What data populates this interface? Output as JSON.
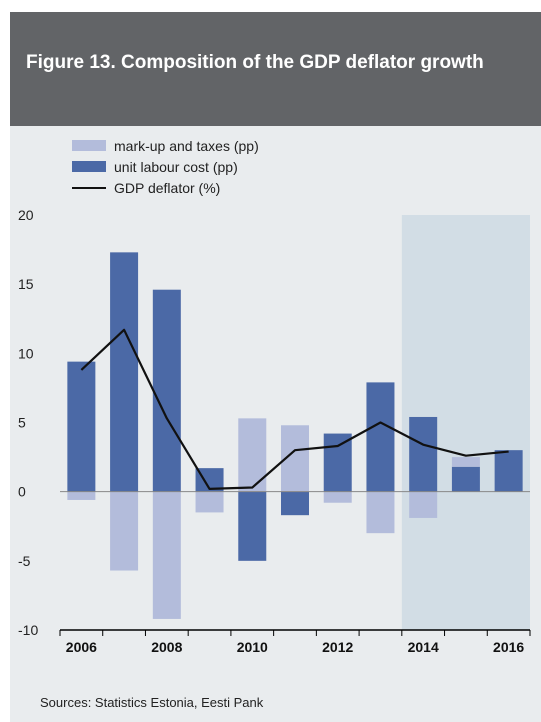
{
  "title": "Figure 13. Composition of the GDP deflator growth",
  "source": "Sources: Statistics Estonia, Eesti Pank",
  "colors": {
    "header_bg": "#626467",
    "panel_bg": "#e9ecee",
    "markup": "#b3bcdb",
    "labour": "#4b69a6",
    "deflator": "#111111",
    "forecast_shade": "#d2dde5"
  },
  "legend": [
    {
      "label": "mark-up and taxes (pp)",
      "type": "bar",
      "color": "#b3bcdb"
    },
    {
      "label": "unit labour cost (pp)",
      "type": "bar",
      "color": "#4b69a6"
    },
    {
      "label": "GDP deflator (%)",
      "type": "line",
      "color": "#111111"
    }
  ],
  "chart_data": {
    "type": "bar",
    "categories": [
      "2006",
      "2007",
      "2008",
      "2009",
      "2010",
      "2011",
      "2012",
      "2013",
      "2014",
      "2015",
      "2016"
    ],
    "x_tick_labels": [
      "2006",
      "2008",
      "2010",
      "2012",
      "2014",
      "2016"
    ],
    "y_ticks": [
      "20",
      "15",
      "10",
      "5",
      "0",
      "-5",
      "-10"
    ],
    "ylim": [
      -10,
      20
    ],
    "shaded_region": [
      "2014",
      "2016"
    ],
    "series": [
      {
        "name": "mark-up and taxes (pp)",
        "type": "bar",
        "values": [
          -0.6,
          -5.7,
          -9.2,
          -1.5,
          5.3,
          4.8,
          -0.8,
          -3.0,
          -1.9,
          0.7,
          0.0
        ]
      },
      {
        "name": "unit labour cost (pp)",
        "type": "bar",
        "values": [
          9.4,
          17.3,
          14.6,
          1.7,
          -5.0,
          -1.7,
          4.2,
          7.9,
          5.4,
          1.8,
          3.0
        ]
      },
      {
        "name": "GDP deflator (%)",
        "type": "line",
        "values": [
          8.8,
          11.7,
          5.3,
          0.2,
          0.3,
          3.0,
          3.3,
          5.0,
          3.4,
          2.6,
          2.9
        ]
      }
    ]
  }
}
